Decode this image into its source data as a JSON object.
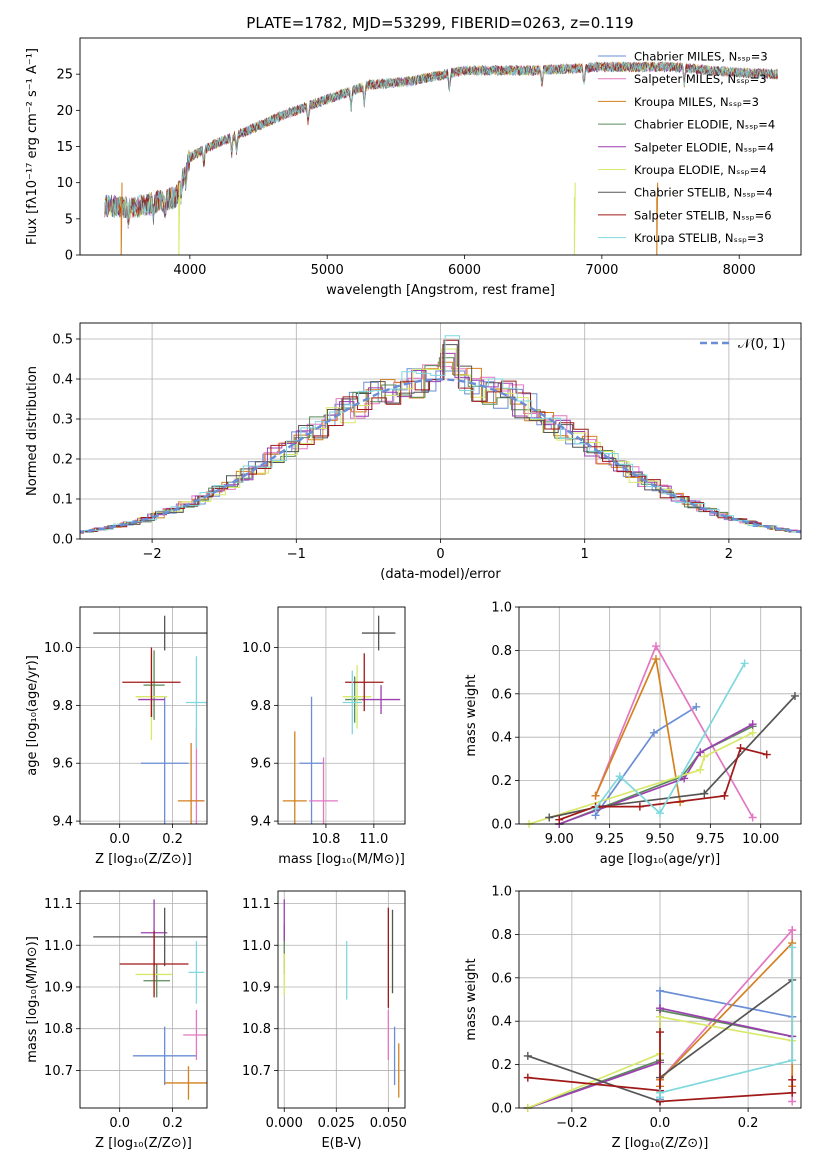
{
  "figure": {
    "title": "PLATE=1782, MJD=53299, FIBERID=0263, z=0.119"
  },
  "colors": {
    "chabrier_miles": "#6a8ed6",
    "salpeter_miles": "#e377c2",
    "kroupa_miles": "#d4801f",
    "chabrier_elodie": "#5a8a5a",
    "salpeter_elodie": "#9c3fb0",
    "kroupa_elodie": "#d8e86a",
    "chabrier_stelib": "#555555",
    "salpeter_stelib": "#a01818",
    "kroupa_stelib": "#7fd8de",
    "normal": "#6a8ed6"
  },
  "chart_data": [
    {
      "type": "line",
      "id": "spectrum",
      "title": "PLATE=1782, MJD=53299, FIBERID=0263, z=0.119",
      "xlabel": "wavelength [Angstrom, rest frame]",
      "ylabel": "Flux [fλ10⁻¹⁷ erg cm⁻² s⁻¹ A⁻¹]",
      "xlim": [
        3200,
        8450
      ],
      "ylim": [
        0,
        30
      ],
      "xticks": [
        "4000",
        "5000",
        "6000",
        "7000",
        "8000"
      ],
      "yticks": [
        "0",
        "5",
        "10",
        "15",
        "20",
        "25"
      ],
      "grid": false,
      "legend": "right",
      "continuum": {
        "x": [
          3380,
          3600,
          3900,
          4000,
          4200,
          4400,
          4700,
          5000,
          5300,
          5600,
          6000,
          6500,
          7000,
          7500,
          8000,
          8280
        ],
        "y": [
          6.8,
          6.6,
          8.0,
          13.5,
          15.5,
          17.0,
          19.5,
          21.5,
          23.5,
          24.0,
          25.5,
          25.5,
          26.0,
          26.0,
          25.2,
          25.0
        ]
      },
      "series": [
        {
          "name": "Chabrier MILES, Nₛₛₚ=3",
          "color": "#6a8ed6"
        },
        {
          "name": "Salpeter MILES, Nₛₛₚ=3",
          "color": "#e377c2"
        },
        {
          "name": "Kroupa MILES, Nₛₛₚ=3",
          "color": "#d4801f"
        },
        {
          "name": "Chabrier ELODIE, Nₛₛₚ=4",
          "color": "#5a8a5a"
        },
        {
          "name": "Salpeter ELODIE, Nₛₛₚ=4",
          "color": "#9c3fb0"
        },
        {
          "name": "Kroupa ELODIE, Nₛₛₚ=4",
          "color": "#d8e86a"
        },
        {
          "name": "Chabrier STELIB, Nₛₛₚ=4",
          "color": "#555555"
        },
        {
          "name": "Salpeter STELIB, Nₛₛₚ=6",
          "color": "#a01818"
        },
        {
          "name": "Kroupa STELIB, Nₛₛₚ=3",
          "color": "#7fd8de"
        }
      ],
      "dropouts": [
        {
          "x": 3500,
          "color": "#d4801f"
        },
        {
          "x": 3920,
          "color": "#d8e86a"
        },
        {
          "x": 6800,
          "color": "#d8e86a"
        },
        {
          "x": 7400,
          "color": "#d4801f"
        }
      ]
    },
    {
      "type": "histogram",
      "id": "residuals",
      "xlabel": "(data-model)/error",
      "ylabel": "Normed distribution",
      "xlim": [
        -2.5,
        2.5
      ],
      "ylim": [
        0,
        0.54
      ],
      "xticks": [
        "−2",
        "−1",
        "0",
        "1",
        "2"
      ],
      "yticks": [
        "0.0",
        "0.1",
        "0.2",
        "0.3",
        "0.4",
        "0.5"
      ],
      "grid": true,
      "legend": "top-right",
      "legend_label": "𝒩(0, 1)",
      "bin_width": 0.1
    },
    {
      "type": "scatter",
      "id": "age_vs_Z",
      "xlabel": "Z [log₁₀(Z/Z⊙)]",
      "ylabel": "age  [log₁₀(age/yr)]",
      "xlim": [
        -0.15,
        0.33
      ],
      "ylim": [
        9.39,
        10.14
      ],
      "xticks": [
        "0.0",
        "0.2"
      ],
      "yticks": [
        "9.4",
        "9.6",
        "9.8",
        "10.0"
      ],
      "grid": true,
      "points": [
        {
          "x": 0.17,
          "y": 9.6,
          "xerr": 0.09,
          "yerr": 0.23,
          "color": "#6a8ed6"
        },
        {
          "x": 0.29,
          "y": 9.47,
          "xerr": 0.03,
          "yerr": 0.25,
          "color": "#e377c2"
        },
        {
          "x": 0.27,
          "y": 9.47,
          "xerr": 0.05,
          "yerr": 0.2,
          "color": "#d4801f"
        },
        {
          "x": 0.13,
          "y": 9.87,
          "xerr": 0.04,
          "yerr": 0.12,
          "color": "#5a8a5a"
        },
        {
          "x": 0.12,
          "y": 9.82,
          "xerr": 0.05,
          "yerr": 0.06,
          "color": "#9c3fb0"
        },
        {
          "x": 0.12,
          "y": 9.83,
          "xerr": 0.06,
          "yerr": 0.15,
          "color": "#d8e86a"
        },
        {
          "x": 0.17,
          "y": 10.05,
          "xerr": 0.27,
          "yerr": 0.06,
          "color": "#555555"
        },
        {
          "x": 0.12,
          "y": 9.88,
          "xerr": 0.11,
          "yerr": 0.12,
          "color": "#a01818"
        },
        {
          "x": 0.29,
          "y": 9.81,
          "xerr": 0.04,
          "yerr": 0.16,
          "color": "#7fd8de"
        }
      ]
    },
    {
      "type": "scatter",
      "id": "age_vs_mass",
      "xlabel": "mass [log₁₀(M/M⊙)]",
      "ylabel": "",
      "xlim": [
        10.6,
        11.13
      ],
      "ylim": [
        9.39,
        10.14
      ],
      "xticks": [
        "10.8",
        "11.0"
      ],
      "yticks": [
        "9.4",
        "9.6",
        "9.8",
        "10.0"
      ],
      "grid": true,
      "points": [
        {
          "x": 10.74,
          "y": 9.6,
          "xerr": 0.05,
          "yerr": 0.23,
          "color": "#6a8ed6"
        },
        {
          "x": 10.79,
          "y": 9.47,
          "xerr": 0.06,
          "yerr": 0.15,
          "color": "#e377c2"
        },
        {
          "x": 10.67,
          "y": 9.47,
          "xerr": 0.05,
          "yerr": 0.24,
          "color": "#d4801f"
        },
        {
          "x": 10.92,
          "y": 9.82,
          "xerr": 0.04,
          "yerr": 0.08,
          "color": "#5a8a5a"
        },
        {
          "x": 11.03,
          "y": 9.82,
          "xerr": 0.08,
          "yerr": 0.05,
          "color": "#9c3fb0"
        },
        {
          "x": 10.93,
          "y": 9.83,
          "xerr": 0.06,
          "yerr": 0.11,
          "color": "#d8e86a"
        },
        {
          "x": 11.02,
          "y": 10.05,
          "xerr": 0.07,
          "yerr": 0.06,
          "color": "#555555"
        },
        {
          "x": 10.96,
          "y": 9.88,
          "xerr": 0.08,
          "yerr": 0.1,
          "color": "#a01818"
        },
        {
          "x": 10.91,
          "y": 9.81,
          "xerr": 0.04,
          "yerr": 0.11,
          "color": "#7fd8de"
        }
      ]
    },
    {
      "type": "line",
      "id": "weight_vs_age",
      "xlabel": "age  [log₁₀(age/yr)]",
      "ylabel": "mass weight",
      "xlim": [
        8.8,
        10.2
      ],
      "ylim": [
        0,
        1.0
      ],
      "xticks": [
        "9.00",
        "9.25",
        "9.50",
        "9.75",
        "10.00"
      ],
      "yticks": [
        "0.0",
        "0.2",
        "0.4",
        "0.6",
        "0.8",
        "1.0"
      ],
      "grid": true,
      "series": [
        {
          "color": "#6a8ed6",
          "x": [
            9.18,
            9.47,
            9.68
          ],
          "y": [
            0.04,
            0.42,
            0.54
          ]
        },
        {
          "color": "#e377c2",
          "x": [
            9.18,
            9.48,
            9.96
          ],
          "y": [
            0.13,
            0.82,
            0.03
          ]
        },
        {
          "color": "#d4801f",
          "x": [
            9.18,
            9.48,
            9.6
          ],
          "y": [
            0.13,
            0.76,
            0.1
          ]
        },
        {
          "color": "#5a8a5a",
          "x": [
            9.0,
            9.61,
            9.7,
            9.96
          ],
          "y": [
            0.0,
            0.22,
            0.33,
            0.45
          ]
        },
        {
          "color": "#9c3fb0",
          "x": [
            9.0,
            9.62,
            9.7,
            9.96
          ],
          "y": [
            0.0,
            0.21,
            0.33,
            0.46
          ]
        },
        {
          "color": "#d8e86a",
          "x": [
            8.85,
            9.7,
            9.72,
            9.96
          ],
          "y": [
            0.0,
            0.25,
            0.31,
            0.42
          ]
        },
        {
          "color": "#555555",
          "x": [
            8.95,
            9.2,
            9.72,
            10.17
          ],
          "y": [
            0.03,
            0.08,
            0.14,
            0.59
          ]
        },
        {
          "color": "#a01818",
          "x": [
            9.0,
            9.18,
            9.4,
            9.82,
            9.9,
            10.03
          ],
          "y": [
            0.02,
            0.08,
            0.08,
            0.13,
            0.35,
            0.32
          ]
        },
        {
          "color": "#7fd8de",
          "x": [
            9.18,
            9.3,
            9.5,
            9.92
          ],
          "y": [
            0.07,
            0.22,
            0.05,
            0.74
          ]
        }
      ]
    },
    {
      "type": "scatter",
      "id": "mass_vs_Z",
      "xlabel": "Z [log₁₀(Z/Z⊙)]",
      "ylabel": "mass [log₁₀(M/M⊙)]",
      "xlim": [
        -0.15,
        0.33
      ],
      "ylim": [
        10.61,
        11.13
      ],
      "xticks": [
        "0.0",
        "0.2"
      ],
      "yticks": [
        "10.7",
        "10.8",
        "10.9",
        "11.0",
        "11.1"
      ],
      "grid": true,
      "points": [
        {
          "x": 0.17,
          "y": 10.735,
          "xerr": 0.12,
          "yerr": 0.07,
          "color": "#6a8ed6"
        },
        {
          "x": 0.29,
          "y": 10.785,
          "xerr": 0.05,
          "yerr": 0.06,
          "color": "#e377c2"
        },
        {
          "x": 0.26,
          "y": 10.67,
          "xerr": 0.09,
          "yerr": 0.04,
          "color": "#d4801f"
        },
        {
          "x": 0.14,
          "y": 10.915,
          "xerr": 0.05,
          "yerr": 0.04,
          "color": "#5a8a5a"
        },
        {
          "x": 0.13,
          "y": 11.03,
          "xerr": 0.05,
          "yerr": 0.08,
          "color": "#9c3fb0"
        },
        {
          "x": 0.13,
          "y": 10.93,
          "xerr": 0.07,
          "yerr": 0.05,
          "color": "#d8e86a"
        },
        {
          "x": 0.17,
          "y": 11.02,
          "xerr": 0.27,
          "yerr": 0.07,
          "color": "#555555"
        },
        {
          "x": 0.13,
          "y": 10.955,
          "xerr": 0.13,
          "yerr": 0.08,
          "color": "#a01818"
        },
        {
          "x": 0.29,
          "y": 10.935,
          "xerr": 0.03,
          "yerr": 0.075,
          "color": "#7fd8de"
        }
      ]
    },
    {
      "type": "scatter",
      "id": "mass_vs_ebv",
      "xlabel": "E(B-V)",
      "ylabel": "",
      "xlim": [
        -0.003,
        0.058
      ],
      "ylim": [
        10.61,
        11.13
      ],
      "xticks": [
        "0.000",
        "0.025",
        "0.050"
      ],
      "yticks": [
        "10.7",
        "10.8",
        "10.9",
        "11.0",
        "11.1"
      ],
      "grid": true,
      "points": [
        {
          "x": 0.053,
          "y": 10.735,
          "xerr": 0,
          "yerr": 0.07,
          "color": "#6a8ed6"
        },
        {
          "x": 0.05,
          "y": 10.785,
          "xerr": 0,
          "yerr": 0.06,
          "color": "#e377c2"
        },
        {
          "x": 0.055,
          "y": 10.7,
          "xerr": 0,
          "yerr": 0.065,
          "color": "#d4801f"
        },
        {
          "x": 0.0,
          "y": 10.99,
          "xerr": 0,
          "yerr": 0.06,
          "color": "#5a8a5a"
        },
        {
          "x": 0.0,
          "y": 11.06,
          "xerr": 0,
          "yerr": 0.05,
          "color": "#9c3fb0"
        },
        {
          "x": 0.0,
          "y": 10.93,
          "xerr": 0,
          "yerr": 0.05,
          "color": "#d8e86a"
        },
        {
          "x": 0.052,
          "y": 10.985,
          "xerr": 0,
          "yerr": 0.1,
          "color": "#555555"
        },
        {
          "x": 0.05,
          "y": 10.97,
          "xerr": 0,
          "yerr": 0.12,
          "color": "#a01818"
        },
        {
          "x": 0.03,
          "y": 10.94,
          "xerr": 0,
          "yerr": 0.07,
          "color": "#7fd8de"
        }
      ]
    },
    {
      "type": "line",
      "id": "weight_vs_Z",
      "xlabel": "Z [log₁₀(Z/Z⊙)]",
      "ylabel": "mass weight",
      "xlim": [
        -0.32,
        0.32
      ],
      "ylim": [
        0,
        1.0
      ],
      "xticks": [
        "−0.2",
        "0.0",
        "0.2"
      ],
      "yticks": [
        "0.0",
        "0.2",
        "0.4",
        "0.6",
        "0.8",
        "1.0"
      ],
      "grid": true,
      "series": [
        {
          "color": "#6a8ed6",
          "x": [
            0.0,
            0.0,
            0.3,
            0.3
          ],
          "y": [
            0.04,
            0.54,
            0.42,
            0.42
          ]
        },
        {
          "color": "#e377c2",
          "x": [
            0.0,
            0.0,
            0.3,
            0.3,
            0.3
          ],
          "y": [
            0.03,
            0.13,
            0.82,
            0.03,
            0.82
          ]
        },
        {
          "color": "#d4801f",
          "x": [
            0.0,
            0.0,
            0.3,
            0.3
          ],
          "y": [
            0.1,
            0.13,
            0.76,
            0.1
          ]
        },
        {
          "color": "#5a8a5a",
          "x": [
            -0.3,
            0.0,
            0.0,
            0.3
          ],
          "y": [
            0.0,
            0.22,
            0.45,
            0.33
          ]
        },
        {
          "color": "#9c3fb0",
          "x": [
            -0.3,
            0.0,
            0.0,
            0.3
          ],
          "y": [
            0.0,
            0.21,
            0.46,
            0.33
          ]
        },
        {
          "color": "#d8e86a",
          "x": [
            -0.3,
            0.0,
            0.0,
            0.3
          ],
          "y": [
            0.0,
            0.25,
            0.42,
            0.31
          ]
        },
        {
          "color": "#555555",
          "x": [
            -0.3,
            0.0,
            0.0,
            0.3
          ],
          "y": [
            0.24,
            0.03,
            0.14,
            0.59
          ]
        },
        {
          "color": "#a01818",
          "x": [
            -0.3,
            0.0,
            0.0,
            0.0,
            0.3,
            0.3
          ],
          "y": [
            0.14,
            0.08,
            0.35,
            0.03,
            0.07,
            0.13
          ]
        },
        {
          "color": "#7fd8de",
          "x": [
            0.0,
            0.0,
            0.3,
            0.3
          ],
          "y": [
            0.05,
            0.07,
            0.22,
            0.74
          ]
        }
      ]
    }
  ]
}
